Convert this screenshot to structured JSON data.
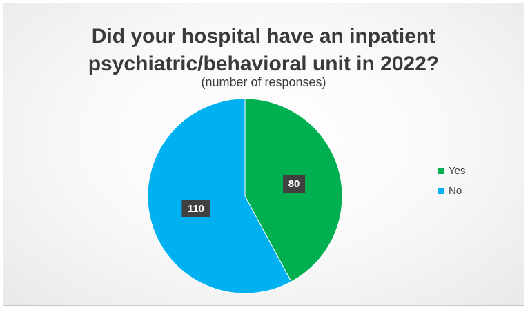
{
  "chart_data": {
    "type": "pie",
    "title_lines": [
      "Did your hospital have an inpatient",
      "psychiatric/behavioral unit in 2022?"
    ],
    "subtitle": "(number of responses)",
    "slices": [
      {
        "label": "Yes",
        "value": 80,
        "color": "#00b050"
      },
      {
        "label": "No",
        "value": 110,
        "color": "#00b0f0"
      }
    ],
    "legend_position": "right"
  }
}
